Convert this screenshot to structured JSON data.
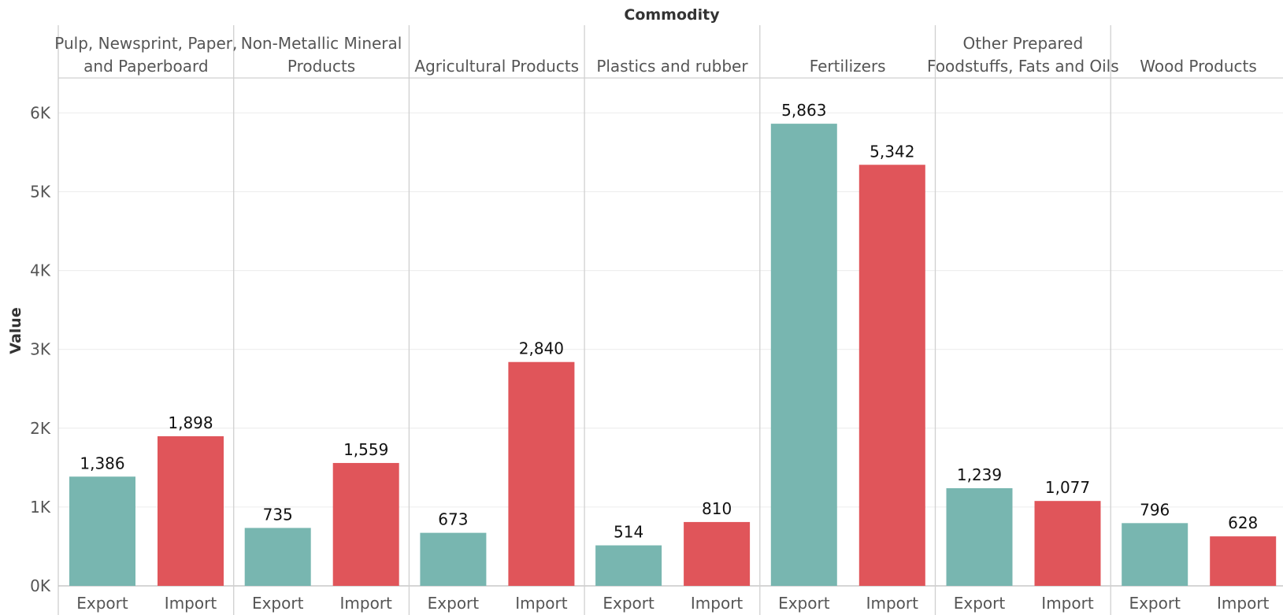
{
  "chart_data": {
    "type": "bar",
    "top_title": "Commodity",
    "ylabel": "Value",
    "ylim": [
      0,
      6000
    ],
    "y_ticks": [
      0,
      1000,
      2000,
      3000,
      4000,
      5000,
      6000
    ],
    "y_tick_labels": [
      "0K",
      "1K",
      "2K",
      "3K",
      "4K",
      "5K",
      "6K"
    ],
    "grid": true,
    "sub_categories": [
      "Export",
      "Import"
    ],
    "colors": {
      "Export": "#78b6b0",
      "Import": "#e0555a"
    },
    "groups": [
      {
        "name": "Pulp, Newsprint, Paper, and Paperboard",
        "name_lines": [
          "Pulp, Newsprint, Paper,",
          "and Paperboard"
        ],
        "values": [
          1386,
          1898
        ],
        "labels": [
          "1,386",
          "1,898"
        ]
      },
      {
        "name": "Non-Metallic Mineral Products",
        "name_lines": [
          "Non-Metallic Mineral",
          "Products"
        ],
        "values": [
          735,
          1559
        ],
        "labels": [
          "735",
          "1,559"
        ]
      },
      {
        "name": "Agricultural Products",
        "name_lines": [
          "Agricultural Products"
        ],
        "values": [
          673,
          2840
        ],
        "labels": [
          "673",
          "2,840"
        ]
      },
      {
        "name": "Plastics and rubber",
        "name_lines": [
          "Plastics and rubber"
        ],
        "values": [
          514,
          810
        ],
        "labels": [
          "514",
          "810"
        ]
      },
      {
        "name": "Fertilizers",
        "name_lines": [
          "Fertilizers"
        ],
        "values": [
          5863,
          5342
        ],
        "labels": [
          "5,863",
          "5,342"
        ]
      },
      {
        "name": "Other Prepared Foodstuffs, Fats and Oils",
        "name_lines": [
          "Other Prepared",
          "Foodstuffs, Fats and Oils"
        ],
        "values": [
          1239,
          1077
        ],
        "labels": [
          "1,239",
          "1,077"
        ]
      },
      {
        "name": "Wood Products",
        "name_lines": [
          "Wood Products"
        ],
        "values": [
          796,
          628
        ],
        "labels": [
          "796",
          "628"
        ]
      }
    ]
  }
}
